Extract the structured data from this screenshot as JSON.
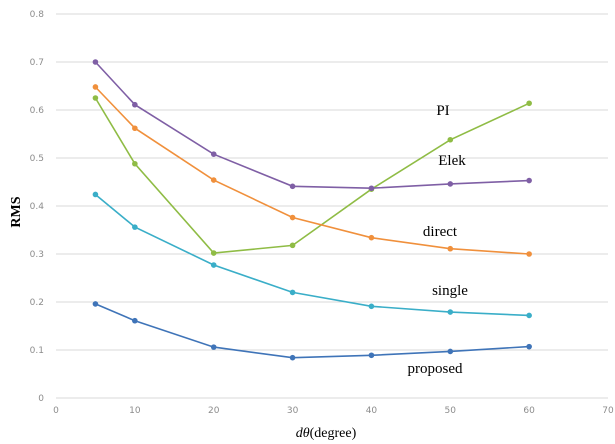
{
  "chart_data": {
    "type": "line",
    "xlabel_math": "dθ",
    "xlabel_rest": "(degree)",
    "ylabel": "RMS",
    "xlim": [
      0,
      70
    ],
    "ylim": [
      0,
      0.8
    ],
    "x_ticks": [
      "0",
      "10",
      "20",
      "30",
      "40",
      "50",
      "60",
      "70"
    ],
    "y_ticks": [
      "0",
      "0.1",
      "0.2",
      "0.3",
      "0.4",
      "0.5",
      "0.6",
      "0.7",
      "0.8"
    ],
    "grid": "horizontal",
    "x": [
      5,
      10,
      20,
      30,
      40,
      50,
      60
    ],
    "series": [
      {
        "name": "PI",
        "color": "#8fbc45",
        "values": [
          0.625,
          0.488,
          0.302,
          0.318,
          0.435,
          0.538,
          0.614
        ]
      },
      {
        "name": "Elek",
        "color": "#7f5fa5",
        "values": [
          0.7,
          0.611,
          0.508,
          0.441,
          0.437,
          0.446,
          0.453
        ]
      },
      {
        "name": "direct",
        "color": "#f0903c",
        "values": [
          0.648,
          0.562,
          0.454,
          0.376,
          0.334,
          0.311,
          0.3
        ]
      },
      {
        "name": "single",
        "color": "#3aaec8",
        "values": [
          0.424,
          0.356,
          0.277,
          0.22,
          0.191,
          0.179,
          0.172
        ]
      },
      {
        "name": "proposed",
        "color": "#3f74b8",
        "values": [
          0.196,
          0.161,
          0.106,
          0.084,
          0.089,
          0.097,
          0.107
        ]
      }
    ]
  }
}
